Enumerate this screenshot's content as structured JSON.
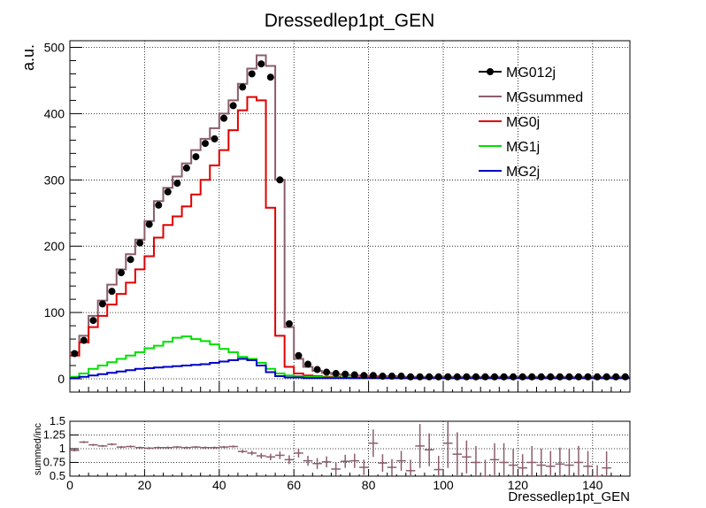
{
  "chart_data": [
    {
      "type": "line",
      "title": "Dressedlep1pt_GEN",
      "ylabel": "a.u.",
      "xlabel": "",
      "xlim": [
        0,
        150
      ],
      "ylim": [
        -20,
        510
      ],
      "grid": true,
      "legend_position": "top-right",
      "x_ticks": [
        "0",
        "20",
        "40",
        "60",
        "80",
        "100",
        "120",
        "140"
      ],
      "y_ticks": [
        "0",
        "100",
        "200",
        "300",
        "400",
        "500"
      ],
      "bin_edges_start": 0,
      "bin_width": 2.5,
      "series": [
        {
          "name": "MG012j",
          "style": "markers",
          "color": "#000000",
          "values": [
            38,
            58,
            88,
            113,
            132,
            160,
            180,
            205,
            233,
            262,
            282,
            295,
            318,
            335,
            355,
            362,
            393,
            412,
            440,
            460,
            475,
            455,
            300,
            83,
            35,
            22,
            14,
            10,
            8,
            7,
            6,
            5,
            5,
            4,
            4,
            4,
            3,
            3,
            3,
            3,
            3,
            3,
            3,
            3,
            3,
            3,
            3,
            3,
            3,
            3,
            3,
            3,
            3,
            3,
            3,
            3,
            3,
            3,
            3,
            3
          ]
        },
        {
          "name": "MGsummed",
          "style": "step",
          "color": "#8b5e6b",
          "values": [
            40,
            65,
            95,
            118,
            142,
            165,
            188,
            210,
            238,
            268,
            288,
            305,
            325,
            345,
            362,
            378,
            400,
            420,
            445,
            468,
            488,
            472,
            300,
            78,
            30,
            18,
            12,
            9,
            7,
            6,
            5,
            5,
            4,
            4,
            4,
            3,
            3,
            3,
            3,
            3,
            3,
            3,
            3,
            3,
            3,
            3,
            3,
            3,
            3,
            3,
            3,
            3,
            3,
            3,
            3,
            3,
            3,
            3,
            3,
            3
          ]
        },
        {
          "name": "MG0j",
          "style": "step",
          "color": "#e00000",
          "values": [
            35,
            55,
            78,
            95,
            112,
            128,
            145,
            165,
            185,
            213,
            232,
            245,
            260,
            278,
            300,
            322,
            345,
            375,
            405,
            425,
            420,
            258,
            65,
            18,
            8,
            5,
            4,
            3,
            3,
            2,
            2,
            2,
            2,
            1,
            1,
            1,
            1,
            1,
            1,
            1,
            1,
            1,
            1,
            1,
            1,
            1,
            1,
            1,
            1,
            1,
            1,
            1,
            1,
            1,
            1,
            1,
            1,
            1,
            1,
            1
          ]
        },
        {
          "name": "MG1j",
          "style": "step",
          "color": "#00e000",
          "values": [
            3,
            8,
            15,
            20,
            25,
            30,
            35,
            40,
            46,
            50,
            56,
            62,
            64,
            60,
            57,
            52,
            45,
            40,
            33,
            30,
            24,
            15,
            8,
            5,
            4,
            3,
            3,
            2,
            2,
            2,
            1,
            1,
            1,
            1,
            1,
            1,
            1,
            1,
            1,
            1,
            1,
            1,
            1,
            1,
            1,
            1,
            1,
            1,
            1,
            1,
            1,
            1,
            1,
            1,
            1,
            1,
            1,
            1,
            1,
            1
          ]
        },
        {
          "name": "MG2j",
          "style": "step",
          "color": "#0000c8",
          "values": [
            1,
            3,
            5,
            7,
            9,
            11,
            13,
            15,
            16,
            17,
            18,
            19,
            20,
            21,
            22,
            24,
            26,
            28,
            30,
            28,
            20,
            10,
            4,
            2,
            2,
            1,
            1,
            1,
            1,
            1,
            1,
            1,
            1,
            1,
            1,
            1,
            1,
            1,
            1,
            1,
            1,
            1,
            1,
            1,
            1,
            1,
            1,
            1,
            1,
            1,
            1,
            1,
            1,
            1,
            1,
            1,
            1,
            1,
            1,
            1
          ]
        }
      ]
    },
    {
      "type": "scatter",
      "title": "",
      "xlabel": "Dressedlep1pt_GEN",
      "ylabel": "summed/inc",
      "xlim": [
        0,
        150
      ],
      "ylim": [
        0.5,
        1.5
      ],
      "grid": true,
      "x_ticks": [
        "0",
        "20",
        "40",
        "60",
        "80",
        "100",
        "120",
        "140"
      ],
      "y_ticks": [
        "0.5",
        "0.75",
        "1",
        "1.25",
        "1.5"
      ],
      "series": [
        {
          "name": "ratio",
          "color": "#8b5e6b",
          "points": [
            {
              "x": 1.25,
              "y": 0.97,
              "err": 0.02
            },
            {
              "x": 3.75,
              "y": 1.12,
              "err": 0.02
            },
            {
              "x": 6.25,
              "y": 1.07,
              "err": 0.02
            },
            {
              "x": 8.75,
              "y": 1.05,
              "err": 0.02
            },
            {
              "x": 11.25,
              "y": 1.08,
              "err": 0.02
            },
            {
              "x": 13.75,
              "y": 1.03,
              "err": 0.02
            },
            {
              "x": 16.25,
              "y": 1.04,
              "err": 0.02
            },
            {
              "x": 18.75,
              "y": 1.02,
              "err": 0.02
            },
            {
              "x": 21.25,
              "y": 1.01,
              "err": 0.02
            },
            {
              "x": 23.75,
              "y": 1.02,
              "err": 0.02
            },
            {
              "x": 26.25,
              "y": 1.02,
              "err": 0.02
            },
            {
              "x": 28.75,
              "y": 1.03,
              "err": 0.02
            },
            {
              "x": 31.25,
              "y": 1.02,
              "err": 0.02
            },
            {
              "x": 33.75,
              "y": 1.03,
              "err": 0.02
            },
            {
              "x": 36.25,
              "y": 1.02,
              "err": 0.02
            },
            {
              "x": 38.75,
              "y": 1.02,
              "err": 0.02
            },
            {
              "x": 41.25,
              "y": 1.03,
              "err": 0.02
            },
            {
              "x": 43.75,
              "y": 1.04,
              "err": 0.02
            },
            {
              "x": 46.25,
              "y": 0.95,
              "err": 0.03
            },
            {
              "x": 48.75,
              "y": 0.92,
              "err": 0.04
            },
            {
              "x": 51.25,
              "y": 0.87,
              "err": 0.05
            },
            {
              "x": 53.75,
              "y": 0.85,
              "err": 0.06
            },
            {
              "x": 56.25,
              "y": 0.88,
              "err": 0.07
            },
            {
              "x": 58.75,
              "y": 0.8,
              "err": 0.08
            },
            {
              "x": 61.25,
              "y": 0.92,
              "err": 0.08
            },
            {
              "x": 63.75,
              "y": 0.78,
              "err": 0.09
            },
            {
              "x": 66.25,
              "y": 0.73,
              "err": 0.1
            },
            {
              "x": 68.75,
              "y": 0.76,
              "err": 0.1
            },
            {
              "x": 71.25,
              "y": 0.63,
              "err": 0.12
            },
            {
              "x": 73.75,
              "y": 0.77,
              "err": 0.12
            },
            {
              "x": 76.25,
              "y": 0.78,
              "err": 0.13
            },
            {
              "x": 78.75,
              "y": 0.66,
              "err": 0.14
            },
            {
              "x": 81.25,
              "y": 1.1,
              "err": 0.25
            },
            {
              "x": 83.75,
              "y": 0.74,
              "err": 0.16
            },
            {
              "x": 86.25,
              "y": 0.66,
              "err": 0.15
            },
            {
              "x": 88.75,
              "y": 0.78,
              "err": 0.18
            },
            {
              "x": 91.25,
              "y": 0.6,
              "err": 0.2
            },
            {
              "x": 93.75,
              "y": 1.05,
              "err": 0.4
            },
            {
              "x": 96.25,
              "y": 0.98,
              "err": 0.3
            },
            {
              "x": 98.75,
              "y": 0.62,
              "err": 0.25
            },
            {
              "x": 101.25,
              "y": 1.1,
              "err": 0.45
            },
            {
              "x": 103.75,
              "y": 0.9,
              "err": 0.4
            },
            {
              "x": 106.25,
              "y": 0.85,
              "err": 0.3
            },
            {
              "x": 108.75,
              "y": 0.75,
              "err": 0.3
            },
            {
              "x": 111.25,
              "y": 0.5,
              "err": 0.3
            },
            {
              "x": 113.75,
              "y": 0.8,
              "err": 0.3
            },
            {
              "x": 116.25,
              "y": 0.75,
              "err": 0.35
            },
            {
              "x": 118.75,
              "y": 0.7,
              "err": 0.3
            },
            {
              "x": 121.25,
              "y": 0.65,
              "err": 0.25
            },
            {
              "x": 123.75,
              "y": 0.75,
              "err": 0.3
            },
            {
              "x": 126.25,
              "y": 0.7,
              "err": 0.3
            },
            {
              "x": 128.75,
              "y": 0.68,
              "err": 0.28
            },
            {
              "x": 131.25,
              "y": 0.72,
              "err": 0.3
            },
            {
              "x": 133.75,
              "y": 0.7,
              "err": 0.3
            },
            {
              "x": 136.25,
              "y": 0.75,
              "err": 0.3
            },
            {
              "x": 138.75,
              "y": 0.68,
              "err": 0.28
            },
            {
              "x": 141.25,
              "y": 0.5,
              "err": 0.2
            },
            {
              "x": 143.75,
              "y": 0.65,
              "err": 0.3
            }
          ]
        }
      ]
    }
  ]
}
